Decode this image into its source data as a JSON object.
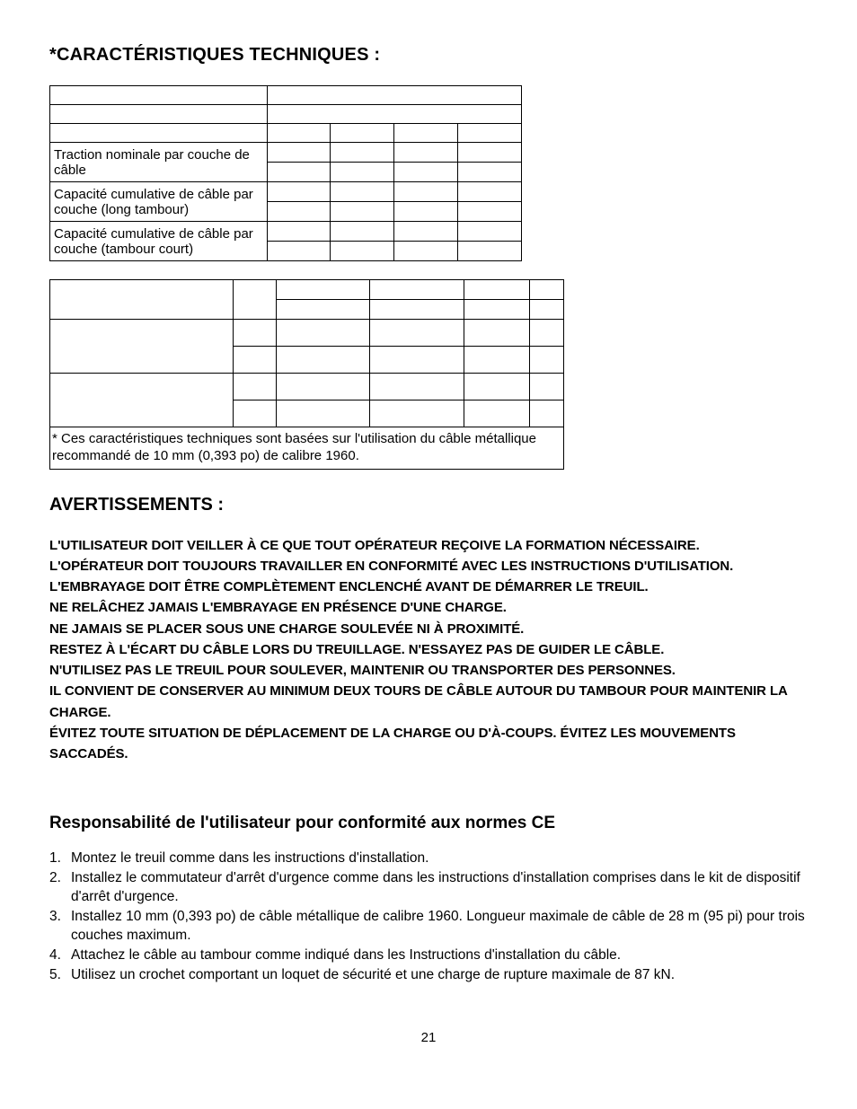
{
  "heading_main": "*CARACTÉRISTIQUES TECHNIQUES :",
  "table1": {
    "rows": [
      {
        "label": "Traction nominale par couche de câble",
        "cells": [
          "",
          "",
          "",
          ""
        ]
      },
      {
        "label": "Capacité cumulative de câble par couche (long tambour)",
        "cells": [
          "",
          "",
          "",
          ""
        ]
      },
      {
        "label": "Capacité cumulative de câble par couche (tambour court)",
        "cells": [
          "",
          "",
          "",
          ""
        ]
      }
    ]
  },
  "table2": {
    "footnote": "* Ces caractéristiques techniques sont basées sur l'utilisation du câble métallique recommandé de 10 mm (0,393 po) de calibre 1960."
  },
  "warnings": {
    "title": "AVERTISSEMENTS :",
    "items": [
      "L'UTILISATEUR DOIT VEILLER À CE QUE TOUT OPÉRATEUR REÇOIVE LA FORMATION NÉCESSAIRE.",
      "L'OPÉRATEUR DOIT TOUJOURS TRAVAILLER EN CONFORMITÉ AVEC LES INSTRUCTIONS D'UTILISATION.",
      "L'EMBRAYAGE DOIT ÊTRE COMPLÈTEMENT ENCLENCHÉ AVANT DE DÉMARRER LE TREUIL.",
      "NE RELÂCHEZ JAMAIS L'EMBRAYAGE EN PRÉSENCE D'UNE CHARGE.",
      "NE JAMAIS SE PLACER SOUS UNE CHARGE SOULEVÉE NI À PROXIMITÉ.",
      "RESTEZ À L'ÉCART DU CÂBLE LORS DU TREUILLAGE. N'ESSAYEZ PAS DE GUIDER LE CÂBLE.",
      "N'UTILISEZ PAS LE TREUIL POUR SOULEVER, MAINTENIR OU TRANSPORTER DES PERSONNES.",
      "IL CONVIENT DE CONSERVER AU MINIMUM DEUX TOURS DE CÂBLE AUTOUR DU TAMBOUR POUR MAINTENIR LA CHARGE.",
      "ÉVITEZ TOUTE SITUATION DE DÉPLACEMENT DE LA CHARGE OU D'À-COUPS. ÉVITEZ LES MOUVEMENTS SACCADÉS."
    ]
  },
  "responsibility": {
    "title": "Responsabilité de l'utilisateur pour conformité aux normes CE",
    "items": [
      "Montez le treuil comme dans les instructions d'installation.",
      "Installez le commutateur d'arrêt d'urgence comme dans les instructions d'installation comprises dans le kit de dispositif d'arrêt d'urgence.",
      "Installez 10 mm (0,393 po) de câble métallique de calibre 1960. Longueur maximale de câble de 28 m (95 pi) pour trois couches maximum.",
      "Attachez le câble au tambour comme indiqué dans les Instructions d'installation du câble.",
      "Utilisez un crochet comportant un loquet de sécurité et une charge de rupture maximale de 87 kN."
    ]
  },
  "page_number": "21"
}
